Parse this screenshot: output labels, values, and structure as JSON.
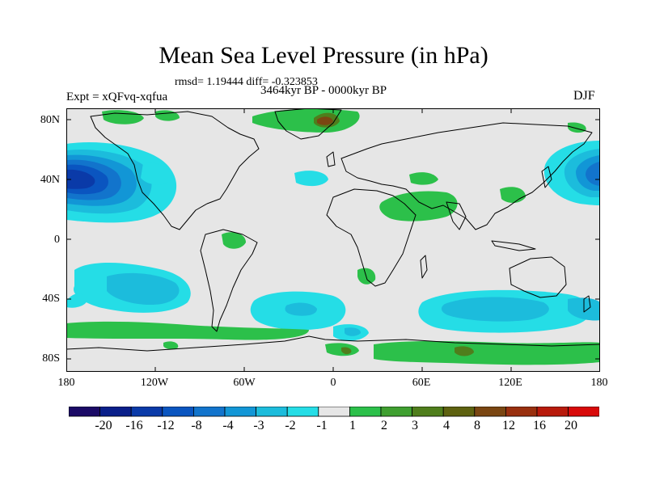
{
  "title": "Mean Sea Level Pressure (in hPa)",
  "stats": "rmsd= 1.19444 diff= -0.323853",
  "experiment": "Expt = xQFvq-xqfua",
  "period": "3464kyr BP - 0000kyr BP",
  "season": "DJF",
  "lat_labels": [
    "80N",
    "40N",
    "0",
    "40S",
    "80S"
  ],
  "lon_labels": [
    "180",
    "120W",
    "60W",
    "0",
    "60E",
    "120E",
    "180"
  ],
  "colorbar": {
    "colors": [
      "#1b0a66",
      "#0a1f8a",
      "#0a3aa8",
      "#0a55c0",
      "#1274cc",
      "#1296d6",
      "#1cbcdc",
      "#25dde6",
      "#e6e6e6",
      "#2cc04a",
      "#3f9f30",
      "#4f7e1c",
      "#5e6210",
      "#7a4612",
      "#99300f",
      "#b81a0c",
      "#d80a0a"
    ],
    "labels": [
      "-20",
      "-16",
      "-12",
      "-8",
      "-4",
      "-3",
      "-2",
      "-1",
      "1",
      "2",
      "3",
      "4",
      "8",
      "12",
      "16",
      "20"
    ]
  },
  "chart_data": {
    "type": "map",
    "variable": "Mean Sea Level Pressure difference",
    "units": "hPa",
    "lon_range": [
      -180,
      180
    ],
    "lat_range": [
      -90,
      90
    ],
    "features": [
      {
        "region": "North Pacific (Aleutian Low)",
        "lon": -165,
        "lat": 40,
        "value": -8
      },
      {
        "region": "North Pacific west",
        "lon": 170,
        "lat": 40,
        "value": -8
      },
      {
        "region": "South Pacific",
        "lon": -140,
        "lat": -40,
        "value": -3
      },
      {
        "region": "South Atlantic",
        "lon": -20,
        "lat": -45,
        "value": -3
      },
      {
        "region": "Southern Indian Ocean",
        "lon": 90,
        "lat": -45,
        "value": -3
      },
      {
        "region": "Arabia / India",
        "lon": 50,
        "lat": 25,
        "value": 2
      },
      {
        "region": "Antarctica",
        "lon": 60,
        "lat": -80,
        "value": 2
      },
      {
        "region": "Southern Ocean belt",
        "lon": -100,
        "lat": -62,
        "value": 2
      },
      {
        "region": "Greenland / Arctic",
        "lon": 0,
        "lat": 80,
        "value": 3
      }
    ]
  }
}
